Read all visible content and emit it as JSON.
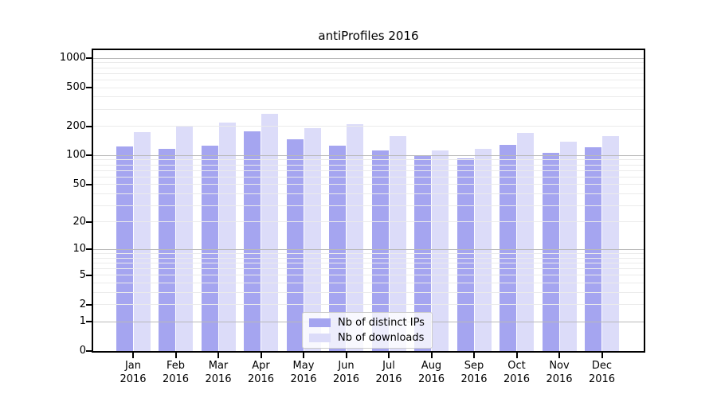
{
  "chart_data": {
    "type": "bar",
    "title": "antiProfiles 2016",
    "x_categories": [
      "Jan",
      "Feb",
      "Mar",
      "Apr",
      "May",
      "Jun",
      "Jul",
      "Aug",
      "Sep",
      "Oct",
      "Nov",
      "Dec"
    ],
    "x_year": "2016",
    "series": [
      {
        "name": "Nb of distinct IPs",
        "color": "#a5a5f0",
        "values": [
          123,
          117,
          126,
          178,
          146,
          127,
          113,
          100,
          93,
          129,
          107,
          121
        ]
      },
      {
        "name": "Nb of downloads",
        "color": "#dcdcf9",
        "values": [
          175,
          203,
          220,
          268,
          193,
          211,
          158,
          112,
          117,
          170,
          139,
          158
        ]
      }
    ],
    "y_ticks": [
      1000,
      500,
      200,
      100,
      50,
      20,
      10,
      5,
      2,
      1,
      0
    ],
    "y_scale": "log1p",
    "y_axis_max": 1212,
    "grid": {
      "major": [
        1,
        10,
        100,
        1000
      ],
      "minor": [
        2,
        3,
        4,
        5,
        6,
        7,
        8,
        9,
        20,
        30,
        40,
        50,
        60,
        70,
        80,
        90,
        200,
        300,
        400,
        500,
        600,
        700,
        800,
        900
      ]
    },
    "legend_position": "lower center",
    "colors": {
      "major_grid": "#b9b9b9",
      "minor_grid": "#ebebeb",
      "axis": "#000000",
      "background": "#ffffff"
    }
  }
}
